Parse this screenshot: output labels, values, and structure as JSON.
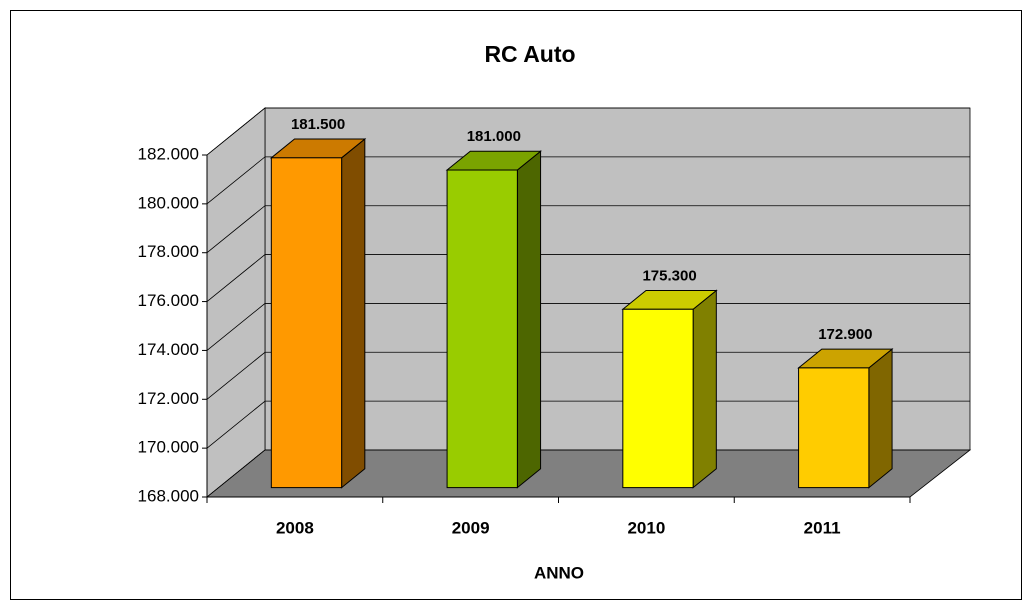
{
  "chart_data": {
    "type": "bar3d",
    "title": "RC Auto",
    "x_label": "ANNO",
    "categories": [
      "2008",
      "2009",
      "2010",
      "2011"
    ],
    "values": [
      181500,
      181000,
      175300,
      172900
    ],
    "value_labels": [
      "181.500",
      "181.000",
      "175.300",
      "172.900"
    ],
    "colors": [
      "#ff9900",
      "#99cc00",
      "#ffff00",
      "#ffcc00"
    ],
    "ylim": [
      168000,
      182000
    ],
    "yticks": [
      {
        "value": 168000,
        "label": "168.000"
      },
      {
        "value": 170000,
        "label": "170.000"
      },
      {
        "value": 172000,
        "label": "172.000"
      },
      {
        "value": 174000,
        "label": "174.000"
      },
      {
        "value": 176000,
        "label": "176.000"
      },
      {
        "value": 178000,
        "label": "178.000"
      },
      {
        "value": 180000,
        "label": "180.000"
      },
      {
        "value": 182000,
        "label": "182.000"
      }
    ],
    "grid": true
  }
}
